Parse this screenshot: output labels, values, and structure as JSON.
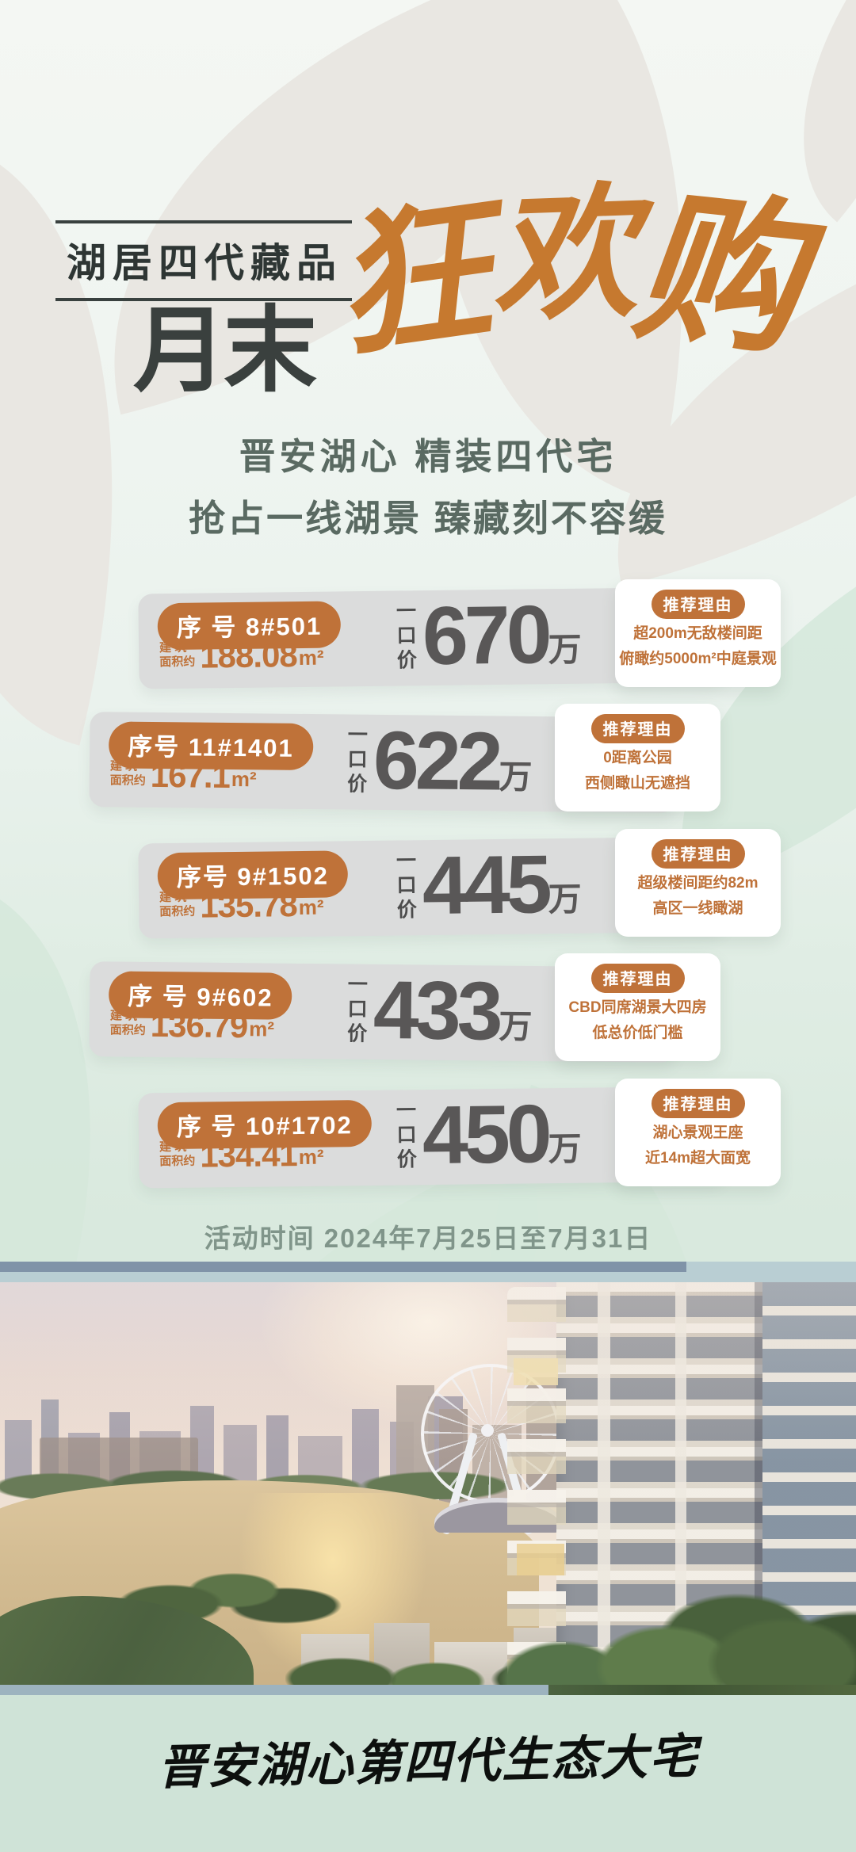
{
  "poster": {
    "series_badge": "湖居四代藏品",
    "title_regular": "月末",
    "title_brush": "狂欢购",
    "subtitle_line1": "晋安湖心 精装四代宅",
    "subtitle_line2": "抢占一线湖景 臻藏刻不容缓",
    "activity_time": "活动时间 2024年7月25日至7月31日",
    "footer_slogan": "晋安湖心第四代生态大宅"
  },
  "labels": {
    "area_line1": "建 筑",
    "area_line2": "面积约",
    "price_label": "一口价",
    "price_unit": "万",
    "reason_title": "推荐理由"
  },
  "listings": [
    {
      "serial": "序 号 8#501",
      "area": "188.08",
      "area_unit": "m²",
      "price": "670",
      "reason1": "超200m无敌楼间距",
      "reason2": "俯瞰约5000m²中庭景观"
    },
    {
      "serial": "序号 11#1401",
      "area": "167.1",
      "area_unit": "m²",
      "price": "622",
      "reason1": "0距离公园",
      "reason2": "西侧瞰山无遮挡"
    },
    {
      "serial": "序号 9#1502",
      "area": "135.78",
      "area_unit": "m²",
      "price": "445",
      "reason1": "超级楼间距约82m",
      "reason2": "高区一线瞰湖"
    },
    {
      "serial": "序 号 9#602",
      "area": "136.79",
      "area_unit": "m²",
      "price": "433",
      "reason1": "CBD同席湖景大四房",
      "reason2": "低总价低门槛"
    },
    {
      "serial": "序 号 10#1702",
      "area": "134.41",
      "area_unit": "m²",
      "price": "450",
      "reason1": "湖心景观王座",
      "reason2": "近14m超大面宽"
    }
  ],
  "colors": {
    "accent_orange": "#bf7239",
    "brush_orange": "#c6792f",
    "price_gray": "#595757",
    "card_gray": "#dbdcdc",
    "mint_background": "#d5e6da",
    "footer_background": "#cfe3d7",
    "slate_bar": "#8093a8"
  }
}
